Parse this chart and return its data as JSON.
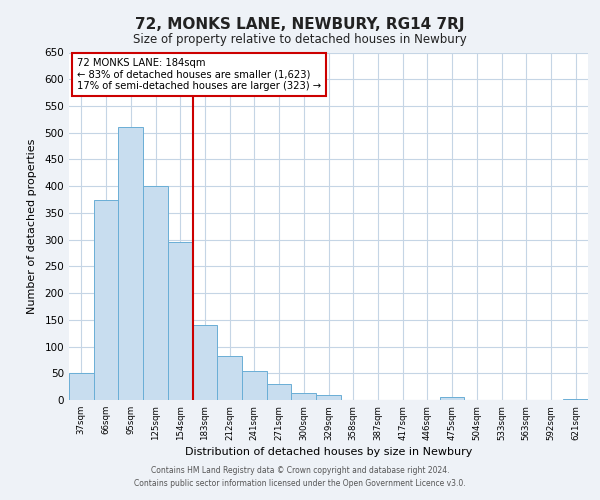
{
  "title": "72, MONKS LANE, NEWBURY, RG14 7RJ",
  "subtitle": "Size of property relative to detached houses in Newbury",
  "xlabel": "Distribution of detached houses by size in Newbury",
  "ylabel": "Number of detached properties",
  "bar_color": "#c8ddef",
  "bar_edge_color": "#6aaed6",
  "categories": [
    "37sqm",
    "66sqm",
    "95sqm",
    "125sqm",
    "154sqm",
    "183sqm",
    "212sqm",
    "241sqm",
    "271sqm",
    "300sqm",
    "329sqm",
    "358sqm",
    "387sqm",
    "417sqm",
    "446sqm",
    "475sqm",
    "504sqm",
    "533sqm",
    "563sqm",
    "592sqm",
    "621sqm"
  ],
  "values": [
    50,
    375,
    510,
    400,
    295,
    140,
    82,
    55,
    30,
    14,
    10,
    0,
    0,
    0,
    0,
    5,
    0,
    0,
    0,
    0,
    2
  ],
  "ylim": [
    0,
    650
  ],
  "yticks": [
    0,
    50,
    100,
    150,
    200,
    250,
    300,
    350,
    400,
    450,
    500,
    550,
    600,
    650
  ],
  "vline_index": 5,
  "vline_color": "#cc0000",
  "annotation_title": "72 MONKS LANE: 184sqm",
  "annotation_line1": "← 83% of detached houses are smaller (1,623)",
  "annotation_line2": "17% of semi-detached houses are larger (323) →",
  "annotation_box_color": "#cc0000",
  "footer_line1": "Contains HM Land Registry data © Crown copyright and database right 2024.",
  "footer_line2": "Contains public sector information licensed under the Open Government Licence v3.0.",
  "background_color": "#eef2f7",
  "plot_bg_color": "#ffffff",
  "grid_color": "#c5d5e5"
}
